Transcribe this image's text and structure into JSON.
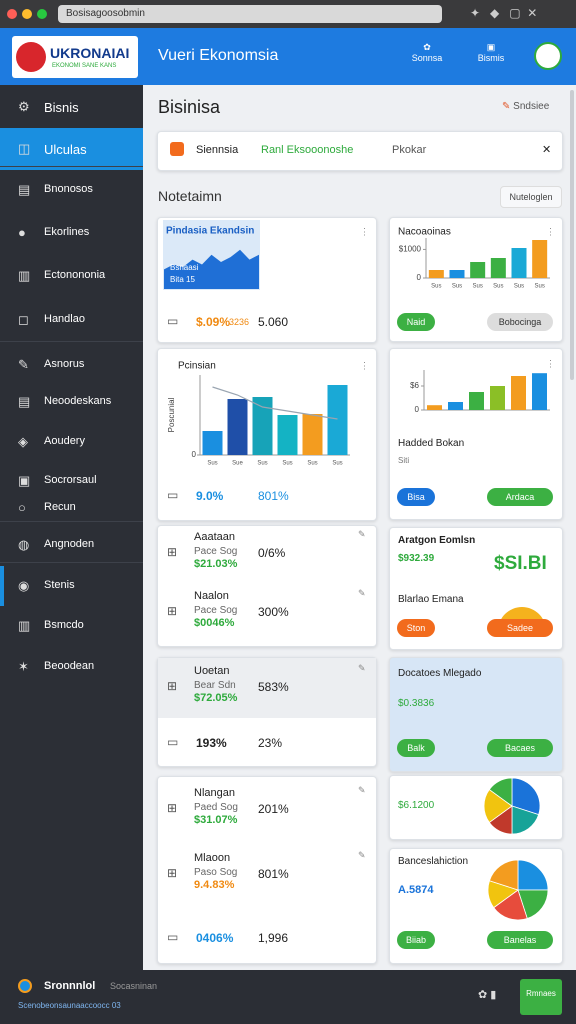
{
  "browser": {
    "url": "Bosisagoosobmin"
  },
  "header": {
    "logo": "UKRONAIAI",
    "logo_sub": "EKONOMI SANE KANS",
    "title": "Vueri Ekonomsia",
    "nav": [
      "Sonnsa",
      "Bismis"
    ]
  },
  "sidebar": {
    "items": [
      "Bisnis",
      "Ulculas",
      "Bnonosos",
      "Ekorlines",
      "Ectonononia",
      "Handlao",
      "Asnorus",
      "Neoodeskans",
      "Aoudery",
      "Socrorsaul",
      "Recun",
      "Angnoden",
      "Stenis",
      "Bsmcdo",
      "Beoodean"
    ]
  },
  "main": {
    "title": "Bisinisa",
    "link": "Sndsiee",
    "filters": [
      "Siennsia",
      "Ranl Eksooonoshe",
      "Pkokar"
    ],
    "section": "Notetaimn",
    "section_button": "Nuteloglen"
  },
  "sparkline": {
    "title": "Pindasia Ekandsin",
    "labels": [
      "Bsnaasi",
      "Bita 15"
    ],
    "values": [
      4,
      5,
      4.5,
      6,
      5,
      7,
      5.5,
      6.5,
      8,
      6,
      7
    ],
    "ylim": [
      0,
      10
    ],
    "color": "#1f6fd6"
  },
  "bar_chart": {
    "title": "Pcinsian",
    "y_label": "Poscunial",
    "categories": [
      "Sus",
      "Sue",
      "Sus",
      "Sus",
      "Sus",
      "Sus"
    ],
    "values": [
      2.4,
      5.6,
      5.8,
      4,
      4.1,
      7
    ],
    "colors": [
      "#1a8fe0",
      "#1f4fa8",
      "#17a3b8",
      "#14b3c4",
      "#f39c1f",
      "#1aa9d6"
    ],
    "line_values": [
      6.8,
      6,
      4.8,
      4.4,
      4,
      3.6
    ],
    "line_color": "#9aa5b1",
    "ylim": [
      0,
      8
    ],
    "yticks": [
      0
    ]
  },
  "rows": [
    {
      "value": "$.09%",
      "note": "3236",
      "right": "5.060",
      "color": "#f08a12"
    },
    {
      "value": "9.0%",
      "right": "801%",
      "color": "#1a8fe0"
    },
    {
      "name": "Aaataan",
      "sub": "Pace Sog",
      "value": "$21.03%",
      "right": "0/6%",
      "color": "#2eaa3c"
    },
    {
      "name": "Naalon",
      "sub": "Pace Sog",
      "value": "$0046%",
      "right": "300%",
      "color": "#2eaa3c"
    },
    {
      "name": "Uoetan",
      "sub": "Bear Sdn",
      "value": "$72.05%",
      "right": "583%",
      "color": "#2eaa3c"
    },
    {
      "value": "193%",
      "right": "23%",
      "color": "#222222"
    },
    {
      "name": "Nlangan",
      "sub": "Paed Sog",
      "value": "$31.07%",
      "right": "201%",
      "color": "#2eaa3c"
    },
    {
      "name": "Mlaoon",
      "sub": "Paso Sog",
      "value": "9.4.83%",
      "right": "801%",
      "color": "#f08a12"
    },
    {
      "value": "0406%",
      "right": "1,996",
      "color": "#1a8fe0"
    }
  ],
  "right_chart_1": {
    "title": "Nacoaoinas",
    "categories": [
      "Sus",
      "Sus",
      "Sus",
      "Sus",
      "Sus",
      "Sus"
    ],
    "values": [
      280,
      280,
      560,
      700,
      1050,
      1330
    ],
    "colors": [
      "#f39c1f",
      "#1a8fe0",
      "#3cb043",
      "#3cb043",
      "#1aa9d6",
      "#f39c1f"
    ],
    "ylim": [
      0,
      1400
    ],
    "yticks": [
      0,
      {
        "value": 1000,
        "label": "$1000"
      }
    ],
    "buttons": [
      "Naid",
      "Bobocinga"
    ]
  },
  "right_chart_2": {
    "values": [
      1.2,
      2,
      4.5,
      6,
      8.5,
      9.2
    ],
    "colors": [
      "#f39c1f",
      "#1a8fe0",
      "#3cb043",
      "#8bbf26",
      "#f39c1f",
      "#1a8fe0"
    ],
    "ylim": [
      0,
      10
    ],
    "yticks": [
      0,
      {
        "value": 6,
        "label": "$6"
      }
    ],
    "title": "Hadded Bokan",
    "sub": "Siti",
    "buttons": [
      "Bisa",
      "Ardaca"
    ]
  },
  "panel_a": {
    "title": "Aratgon Eomlsn",
    "value": "$932.39",
    "big": "$SI.BI"
  },
  "panel_b": {
    "title": "Blarlao Emana",
    "buttons": [
      "Ston",
      "Sadee"
    ]
  },
  "panel_c": {
    "title": "Docatoes Mlegado",
    "value": "$0.3836",
    "buttons": [
      "Balk",
      "Bacaes"
    ]
  },
  "pie_1": {
    "value": "$6.1200",
    "values": [
      30,
      20,
      15,
      20,
      15
    ],
    "colors": [
      "#1a73d9",
      "#17a398",
      "#c0392b",
      "#f1c40f",
      "#3cb043"
    ]
  },
  "pie_2": {
    "title": "Banceslahiction",
    "value": "A.5874",
    "values": [
      25,
      20,
      20,
      15,
      20
    ],
    "colors": [
      "#1a8fe0",
      "#3cb043",
      "#e74c3c",
      "#f1c40f",
      "#f39c1f"
    ],
    "buttons": [
      "Biiab",
      "Banelas"
    ]
  },
  "footer": {
    "title": "Sronnnlol",
    "sub": "Socasninan",
    "line": "Scenobeonsaunaaccoocc 03",
    "button": "Rmnaes"
  }
}
